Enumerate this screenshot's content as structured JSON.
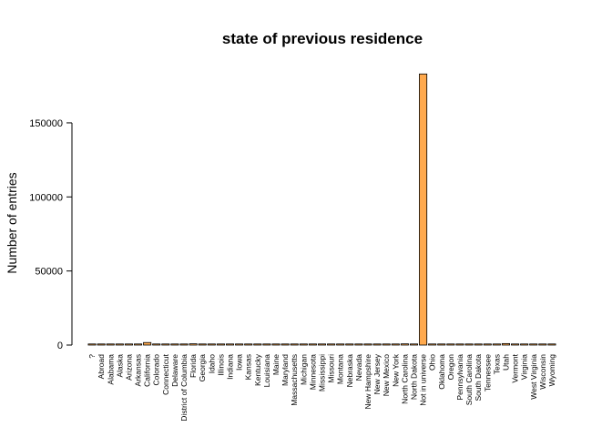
{
  "chart_data": {
    "type": "bar",
    "title": "state of previous residence",
    "xlabel": "",
    "ylabel": "Number of entries",
    "ylim": [
      0,
      185000
    ],
    "yticks": [
      0,
      50000,
      100000,
      150000
    ],
    "grid": false,
    "bar_color": "#FFA94D",
    "categories": [
      "?",
      "Abroad",
      "Alabama",
      "Alaska",
      "Arizona",
      "Arkansas",
      "California",
      "Colorado",
      "Connecticut",
      "Delaware",
      "District of Columbia",
      "Florida",
      "Georgia",
      "Idaho",
      "Illinois",
      "Indiana",
      "Iowa",
      "Kansas",
      "Kentucky",
      "Louisiana",
      "Maine",
      "Maryland",
      "Massachusetts",
      "Michigan",
      "Minnesota",
      "Mississippi",
      "Missouri",
      "Montana",
      "Nebraska",
      "Nevada",
      "New Hampshire",
      "New Jersey",
      "New Mexico",
      "New York",
      "North Carolina",
      "North Dakota",
      "Not in universe",
      "Ohio",
      "Oklahoma",
      "Oregon",
      "Pennsylvania",
      "South Carolina",
      "South Dakota",
      "Tennessee",
      "Texas",
      "Utah",
      "Vermont",
      "Virginia",
      "West Virginia",
      "Wisconsin",
      "Wyoming"
    ],
    "values": [
      700,
      670,
      370,
      290,
      500,
      450,
      1700,
      240,
      290,
      230,
      116,
      850,
      500,
      150,
      200,
      530,
      190,
      250,
      240,
      300,
      200,
      250,
      240,
      440,
      580,
      200,
      320,
      200,
      220,
      200,
      240,
      170,
      460,
      260,
      810,
      500,
      183000,
      210,
      630,
      360,
      400,
      300,
      300,
      200,
      300,
      1000,
      200,
      200,
      280,
      250,
      50
    ]
  }
}
